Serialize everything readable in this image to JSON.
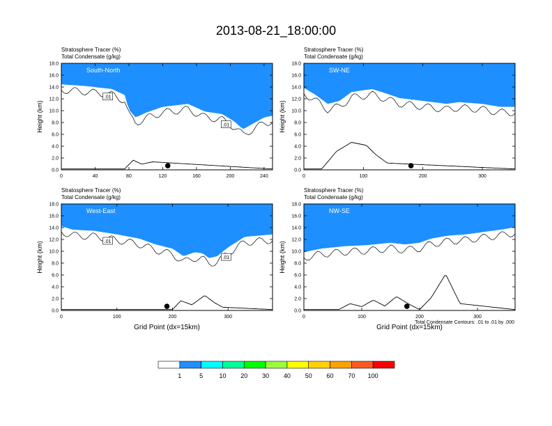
{
  "title": "2013-08-21_18:00:00",
  "chart_data": [
    {
      "type": "heatmap",
      "label": "South-North",
      "title_lines": [
        "Stratosphere Tracer   (%)",
        "Total Condensate   (g/kg)"
      ],
      "ylabel": "Height (km)",
      "xlabel": "",
      "xlim": [
        0,
        250
      ],
      "ylim": [
        0,
        18
      ],
      "xticks": [
        0,
        40,
        80,
        120,
        160,
        200,
        240
      ],
      "yticks": [
        0,
        2,
        4,
        6,
        8,
        10,
        12,
        14,
        16,
        18
      ],
      "ytick_labels": [
        "0.0",
        "2.0",
        "4.0",
        "6.0",
        "8.0",
        "10.0",
        "12.0",
        "14.0",
        "16.0",
        "18.0"
      ],
      "contour_labels": [
        ".01",
        ".01"
      ],
      "marker_x": 126,
      "base_km": [
        [
          0,
          14.8
        ],
        [
          30,
          14.5
        ],
        [
          60,
          14.0
        ],
        [
          75,
          13.0
        ],
        [
          80,
          10.5
        ],
        [
          88,
          9.2
        ],
        [
          100,
          10.0
        ],
        [
          120,
          11.0
        ],
        [
          150,
          11.5
        ],
        [
          170,
          10.2
        ],
        [
          190,
          9.8
        ],
        [
          205,
          8.5
        ],
        [
          215,
          7.2
        ],
        [
          225,
          8.0
        ],
        [
          240,
          9.2
        ],
        [
          250,
          9.5
        ]
      ],
      "tail_km": [
        [
          0,
          0
        ],
        [
          75,
          0
        ],
        [
          85,
          1.5
        ],
        [
          95,
          0.8
        ],
        [
          108,
          1.2
        ],
        [
          250,
          0
        ]
      ]
    },
    {
      "type": "heatmap",
      "label": "SW-NE",
      "title_lines": [
        "Stratosphere Tracer   (%)",
        "Total Condensate   (g/kg)"
      ],
      "ylabel": "Height (km)",
      "xlabel": "",
      "xlim": [
        0,
        355
      ],
      "ylim": [
        0,
        18
      ],
      "xticks": [
        0,
        100,
        200,
        300
      ],
      "yticks": [
        0,
        2,
        4,
        6,
        8,
        10,
        12,
        14,
        16,
        18
      ],
      "ytick_labels": [
        "0.0",
        "2.0",
        "4.0",
        "6.0",
        "8.0",
        "10.0",
        "12.0",
        "14.0",
        "16.0",
        "18.0"
      ],
      "contour_labels": [],
      "marker_x": 180,
      "base_km": [
        [
          0,
          14.2
        ],
        [
          20,
          13.0
        ],
        [
          40,
          11.5
        ],
        [
          60,
          12.0
        ],
        [
          80,
          13.5
        ],
        [
          100,
          13.8
        ],
        [
          115,
          14.0
        ],
        [
          140,
          13.2
        ],
        [
          160,
          12.5
        ],
        [
          200,
          12.0
        ],
        [
          240,
          11.5
        ],
        [
          260,
          11.8
        ],
        [
          300,
          11.5
        ],
        [
          330,
          11.0
        ],
        [
          355,
          11.0
        ]
      ],
      "tail_km": [
        [
          0,
          0
        ],
        [
          30,
          0
        ],
        [
          55,
          3.0
        ],
        [
          80,
          4.5
        ],
        [
          105,
          4.0
        ],
        [
          120,
          2.5
        ],
        [
          140,
          1.0
        ],
        [
          355,
          0
        ]
      ]
    },
    {
      "type": "heatmap",
      "label": "West-East",
      "title_lines": [
        "Stratosphere Tracer   (%)",
        "Total Condensate   (g/kg)"
      ],
      "ylabel": "Height (km)",
      "xlabel": "Grid Point (dx=15km)",
      "xlim": [
        0,
        380
      ],
      "ylim": [
        0,
        18
      ],
      "xticks": [
        0,
        100,
        200,
        300
      ],
      "yticks": [
        0,
        2,
        4,
        6,
        8,
        10,
        12,
        14,
        16,
        18
      ],
      "ytick_labels": [
        "0.0",
        "2.0",
        "4.0",
        "6.0",
        "8.0",
        "10.0",
        "12.0",
        "14.0",
        "16.0",
        "18.0"
      ],
      "contour_labels": [
        ".01",
        ".01"
      ],
      "marker_x": 190,
      "base_km": [
        [
          0,
          14.6
        ],
        [
          20,
          14.0
        ],
        [
          60,
          13.8
        ],
        [
          100,
          13.2
        ],
        [
          140,
          12.5
        ],
        [
          170,
          11.5
        ],
        [
          200,
          10.8
        ],
        [
          220,
          9.5
        ],
        [
          240,
          10.2
        ],
        [
          255,
          10.0
        ],
        [
          265,
          9.2
        ],
        [
          280,
          9.5
        ],
        [
          300,
          11.0
        ],
        [
          330,
          12.8
        ],
        [
          380,
          13.2
        ]
      ],
      "tail_km": [
        [
          0,
          0
        ],
        [
          200,
          0
        ],
        [
          215,
          1.5
        ],
        [
          235,
          0.8
        ],
        [
          258,
          2.4
        ],
        [
          275,
          1.2
        ],
        [
          290,
          0.4
        ],
        [
          380,
          0
        ]
      ]
    },
    {
      "type": "heatmap",
      "label": "NW-SE",
      "title_lines": [
        "Stratosphere Tracer   (%)",
        "Total Condensate   (g/kg)"
      ],
      "ylabel": "Height (km)",
      "xlabel": "Grid Point (dx=15km)",
      "xlim": [
        0,
        365
      ],
      "ylim": [
        0,
        18
      ],
      "xticks": [
        0,
        100,
        200,
        300
      ],
      "yticks": [
        0,
        2,
        4,
        6,
        8,
        10,
        12,
        14,
        16,
        18
      ],
      "ytick_labels": [
        "0.0",
        "2.0",
        "4.0",
        "6.0",
        "8.0",
        "10.0",
        "12.0",
        "14.0",
        "16.0",
        "18.0"
      ],
      "contour_labels": [],
      "marker_x": 178,
      "base_km": [
        [
          0,
          10.2
        ],
        [
          30,
          10.8
        ],
        [
          70,
          11.2
        ],
        [
          110,
          11.4
        ],
        [
          150,
          11.8
        ],
        [
          175,
          11.5
        ],
        [
          200,
          11.8
        ],
        [
          220,
          12.5
        ],
        [
          250,
          13.0
        ],
        [
          280,
          13.2
        ],
        [
          310,
          13.6
        ],
        [
          340,
          14.0
        ],
        [
          365,
          14.4
        ]
      ],
      "tail_km": [
        [
          0,
          0
        ],
        [
          60,
          0
        ],
        [
          80,
          1.0
        ],
        [
          100,
          0.5
        ],
        [
          120,
          1.6
        ],
        [
          140,
          0.6
        ],
        [
          160,
          2.2
        ],
        [
          180,
          1.0
        ],
        [
          200,
          0
        ],
        [
          220,
          2.0
        ],
        [
          235,
          4.4
        ],
        [
          245,
          6.0
        ],
        [
          255,
          4.0
        ],
        [
          270,
          1.0
        ],
        [
          365,
          0
        ]
      ]
    }
  ],
  "footnote": "Total Condensate Contours: .01 to .01 by .000",
  "colorbar": {
    "levels": [
      "1",
      "5",
      "10",
      "20",
      "30",
      "40",
      "50",
      "60",
      "70",
      "100"
    ],
    "colors": [
      "#ffffff",
      "#1e8fff",
      "#00ffff",
      "#00ff96",
      "#00ff00",
      "#9bff3c",
      "#ffff00",
      "#ffd200",
      "#ffa000",
      "#ff5a1e",
      "#ff0000"
    ]
  }
}
